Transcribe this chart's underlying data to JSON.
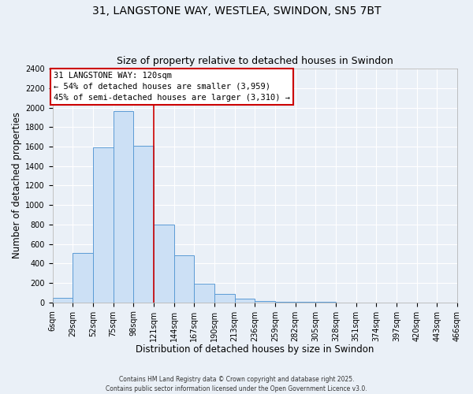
{
  "title_line1": "31, LANGSTONE WAY, WESTLEA, SWINDON, SN5 7BT",
  "title_line2": "Size of property relative to detached houses in Swindon",
  "xlabel": "Distribution of detached houses by size in Swindon",
  "ylabel": "Number of detached properties",
  "footer_line1": "Contains HM Land Registry data © Crown copyright and database right 2025.",
  "footer_line2": "Contains public sector information licensed under the Open Government Licence v3.0.",
  "bin_edges": [
    6,
    29,
    52,
    75,
    98,
    121,
    144,
    167,
    190,
    213,
    236,
    259,
    282,
    305,
    328,
    351,
    374,
    397,
    420,
    443,
    466
  ],
  "bin_labels": [
    "6sqm",
    "29sqm",
    "52sqm",
    "75sqm",
    "98sqm",
    "121sqm",
    "144sqm",
    "167sqm",
    "190sqm",
    "213sqm",
    "236sqm",
    "259sqm",
    "282sqm",
    "305sqm",
    "328sqm",
    "351sqm",
    "374sqm",
    "397sqm",
    "420sqm",
    "443sqm",
    "466sqm"
  ],
  "bar_heights": [
    50,
    510,
    1590,
    1960,
    1610,
    800,
    480,
    190,
    90,
    35,
    15,
    5,
    3,
    2,
    1,
    1,
    1,
    1,
    0,
    1
  ],
  "bar_color": "#cce0f5",
  "bar_edge_color": "#5b9bd5",
  "vline_x": 121,
  "vline_color": "#cc0000",
  "annotation_title": "31 LANGSTONE WAY: 120sqm",
  "annotation_line1": "← 54% of detached houses are smaller (3,959)",
  "annotation_line2": "45% of semi-detached houses are larger (3,310) →",
  "annotation_box_color": "#ffffff",
  "annotation_box_edgecolor": "#cc0000",
  "ylim": [
    0,
    2400
  ],
  "yticks": [
    0,
    200,
    400,
    600,
    800,
    1000,
    1200,
    1400,
    1600,
    1800,
    2000,
    2200,
    2400
  ],
  "bg_color": "#eaf0f7",
  "grid_color": "#ffffff",
  "title_fontsize": 10,
  "subtitle_fontsize": 9,
  "axis_label_fontsize": 8.5,
  "tick_fontsize": 7,
  "annotation_fontsize": 7.5,
  "footer_fontsize": 5.5
}
